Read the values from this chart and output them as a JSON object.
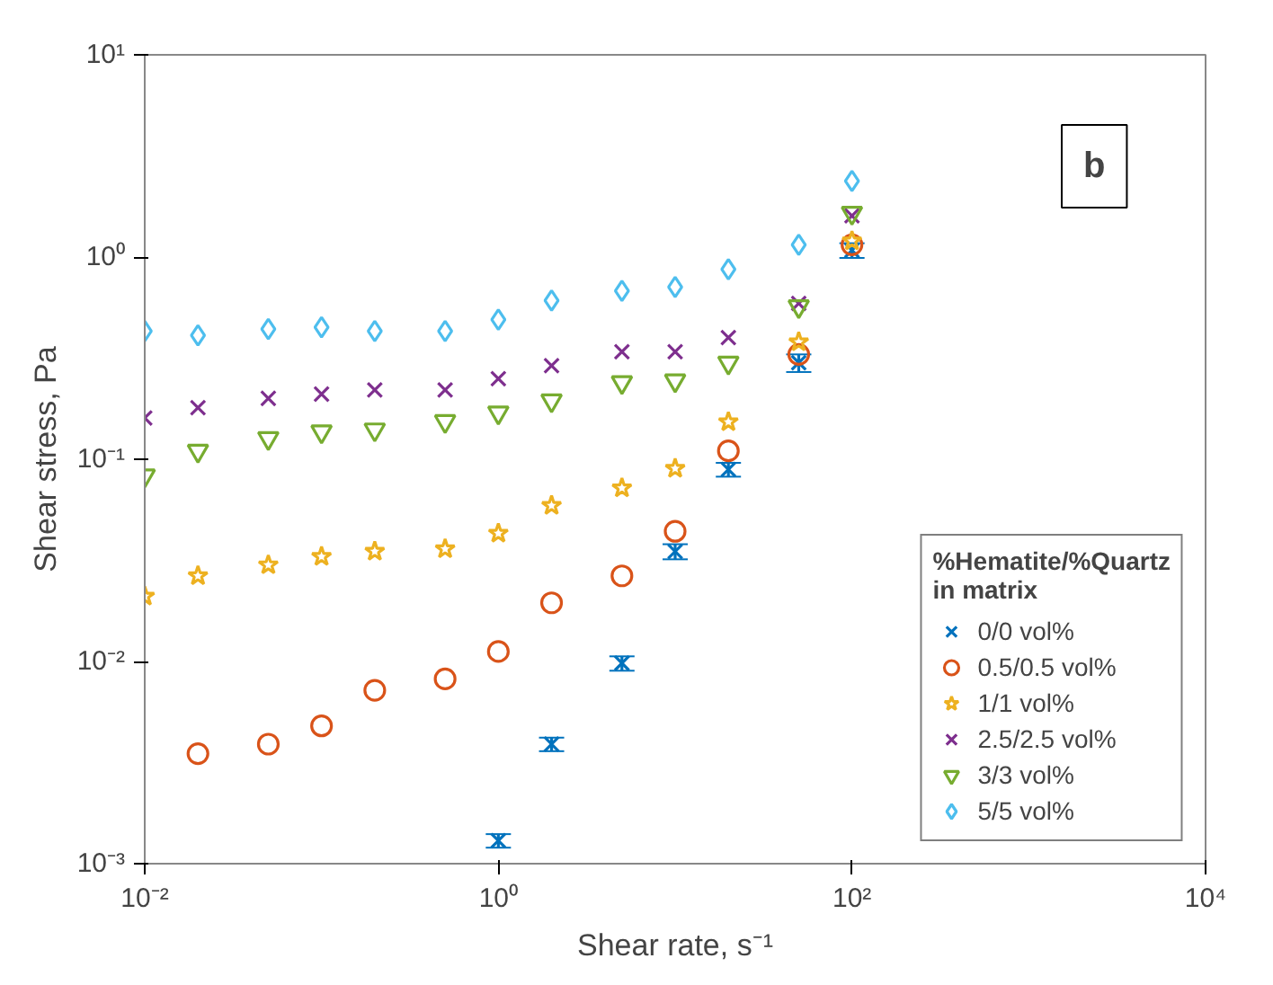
{
  "chart_data": {
    "type": "scatter",
    "xlabel": "Shear rate, s⁻¹",
    "ylabel": "Shear stress, Pa",
    "legend_title": "%Hematite/%Quartz\nin matrix",
    "legend": "bottom right",
    "log": "xy",
    "grid": false,
    "annotations": [
      "b"
    ],
    "xlim": [
      0.01,
      10000
    ],
    "ylim": [
      0.001,
      10
    ],
    "xticks": [
      {
        "value": 0.01,
        "label": "10⁻²"
      },
      {
        "value": 1,
        "label": "10⁰"
      },
      {
        "value": 100,
        "label": "10²"
      },
      {
        "value": 10000,
        "label": "10⁴"
      }
    ],
    "yticks": [
      {
        "value": 0.001,
        "label": "10⁻³"
      },
      {
        "value": 0.01,
        "label": "10⁻²"
      },
      {
        "value": 0.1,
        "label": "10⁻¹"
      },
      {
        "value": 1,
        "label": "10⁰"
      },
      {
        "value": 10,
        "label": "10¹"
      }
    ],
    "series": [
      {
        "name": "0/0 vol%",
        "color": "#0072bd",
        "marker": "cross",
        "x": [
          1,
          2,
          5,
          10,
          20,
          50,
          100
        ],
        "values": [
          0.0013,
          0.0039,
          0.0098,
          0.035,
          0.089,
          0.3,
          1.08
        ],
        "errors": [
          0.0001,
          0.0003,
          0.0008,
          0.003,
          0.007,
          0.03,
          0.09
        ]
      },
      {
        "name": "0.5/0.5 vol%",
        "color": "#d95319",
        "marker": "circle",
        "x": [
          0.02,
          0.05,
          0.1,
          0.2,
          0.5,
          1,
          2,
          5,
          10,
          20,
          50,
          100
        ],
        "values": [
          0.0035,
          0.0039,
          0.0048,
          0.0072,
          0.0082,
          0.0112,
          0.0195,
          0.0265,
          0.044,
          0.11,
          0.33,
          1.15
        ]
      },
      {
        "name": "1/1 vol%",
        "color": "#edb120",
        "marker": "star",
        "x": [
          0.01,
          0.02,
          0.05,
          0.1,
          0.2,
          0.5,
          1,
          2,
          5,
          10,
          20,
          50,
          100
        ],
        "values": [
          0.021,
          0.0265,
          0.03,
          0.033,
          0.035,
          0.036,
          0.043,
          0.059,
          0.072,
          0.09,
          0.153,
          0.38,
          1.2
        ]
      },
      {
        "name": "2.5/2.5 vol%",
        "color": "#7e2f8e",
        "marker": "cross",
        "x": [
          0.01,
          0.02,
          0.05,
          0.1,
          0.2,
          0.5,
          1,
          2,
          5,
          10,
          20,
          50,
          100
        ],
        "values": [
          0.16,
          0.18,
          0.2,
          0.21,
          0.22,
          0.22,
          0.25,
          0.29,
          0.34,
          0.34,
          0.4,
          0.59,
          1.6
        ]
      },
      {
        "name": "3/3 vol%",
        "color": "#77ac30",
        "marker": "triangle",
        "x": [
          0.01,
          0.02,
          0.05,
          0.1,
          0.2,
          0.5,
          1,
          2,
          5,
          10,
          20,
          50,
          100
        ],
        "values": [
          0.083,
          0.11,
          0.127,
          0.137,
          0.14,
          0.154,
          0.17,
          0.195,
          0.24,
          0.245,
          0.3,
          0.57,
          1.65
        ]
      },
      {
        "name": "5/5 vol%",
        "color": "#4dbeee",
        "marker": "diamond",
        "x": [
          0.01,
          0.02,
          0.05,
          0.1,
          0.2,
          0.5,
          1,
          2,
          5,
          10,
          20,
          50,
          100
        ],
        "values": [
          0.43,
          0.41,
          0.44,
          0.45,
          0.43,
          0.43,
          0.49,
          0.61,
          0.68,
          0.71,
          0.87,
          1.15,
          2.38
        ]
      }
    ]
  }
}
